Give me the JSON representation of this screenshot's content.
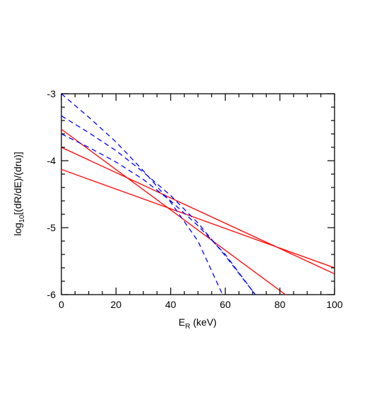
{
  "chart_data": {
    "type": "line",
    "xlabel": {
      "main": "E",
      "sub": "R",
      "rest": " (keV)"
    },
    "ylabel": {
      "main": "log",
      "sub": "10",
      "rest": "[(dR/dE)/(dru)]"
    },
    "xlim": [
      0,
      100
    ],
    "xticks": [
      0,
      20,
      40,
      60,
      80,
      100
    ],
    "ylim": [
      -6,
      -3
    ],
    "yticks": [
      -6,
      -5,
      -4,
      -3
    ],
    "series": [
      {
        "color": "#ff0000",
        "dash": false,
        "x": [
          0,
          82
        ],
        "values": [
          -3.53,
          -6
        ]
      },
      {
        "color": "#ff0000",
        "dash": false,
        "x": [
          0,
          100
        ],
        "values": [
          -3.8,
          -5.69
        ]
      },
      {
        "color": "#ff0000",
        "dash": false,
        "x": [
          0,
          100
        ],
        "values": [
          -4.13,
          -5.6
        ]
      },
      {
        "color": "#0000ff",
        "dash": true,
        "x": [
          0,
          10,
          20,
          30,
          40,
          50,
          59
        ],
        "values": [
          -3.0,
          -3.35,
          -3.72,
          -4.15,
          -4.62,
          -5.2,
          -6.0
        ]
      },
      {
        "color": "#0000ff",
        "dash": true,
        "x": [
          0,
          10,
          20,
          30,
          40,
          50,
          60,
          71
        ],
        "values": [
          -3.33,
          -3.58,
          -3.85,
          -4.17,
          -4.52,
          -4.93,
          -5.42,
          -6.0
        ]
      },
      {
        "color": "#0000ff",
        "dash": true,
        "x": [
          0,
          10,
          20,
          30,
          40,
          50,
          60,
          71
        ],
        "values": [
          -3.6,
          -3.8,
          -4.02,
          -4.28,
          -4.6,
          -4.97,
          -5.4,
          -6.0
        ]
      }
    ]
  }
}
